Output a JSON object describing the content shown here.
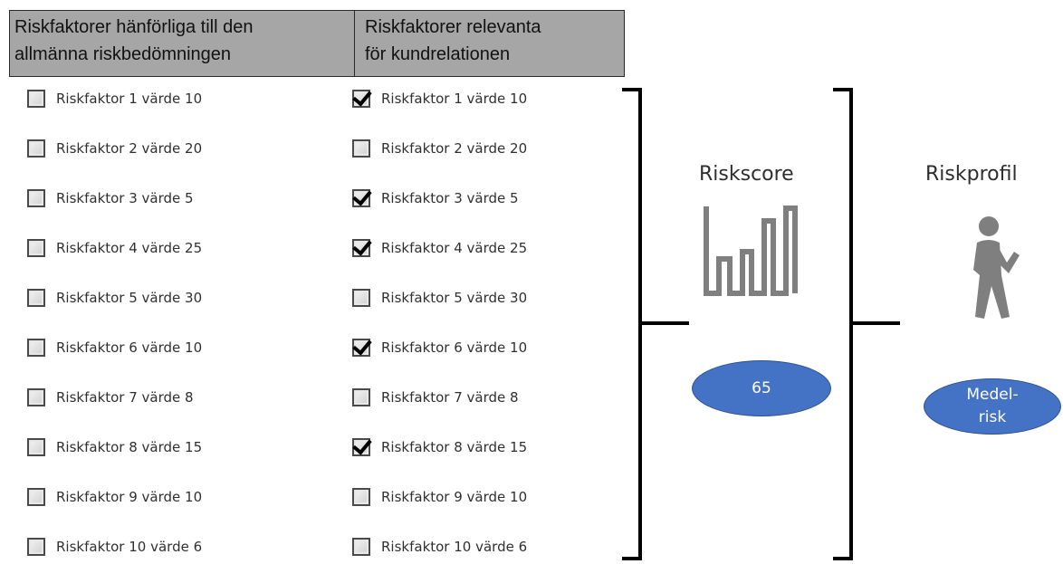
{
  "headers": {
    "general": "Riskfaktorer hänförliga till den\nallmänna riskbedömningen",
    "relation": "Riskfaktorer relevanta\nför kundrelationen"
  },
  "general_factors": [
    {
      "label": "Riskfaktor 1 värde 10",
      "checked": false
    },
    {
      "label": "Riskfaktor 2 värde 20",
      "checked": false
    },
    {
      "label": "Riskfaktor 3 värde 5",
      "checked": false
    },
    {
      "label": "Riskfaktor 4 värde 25",
      "checked": false
    },
    {
      "label": "Riskfaktor 5 värde 30",
      "checked": false
    },
    {
      "label": "Riskfaktor 6 värde 10",
      "checked": false
    },
    {
      "label": "Riskfaktor 7 värde 8",
      "checked": false
    },
    {
      "label": "Riskfaktor 8 värde 15",
      "checked": false
    },
    {
      "label": "Riskfaktor 9 värde 10",
      "checked": false
    },
    {
      "label": "Riskfaktor 10 värde 6",
      "checked": false
    }
  ],
  "relation_factors": [
    {
      "label": "Riskfaktor 1 värde 10",
      "checked": true
    },
    {
      "label": "Riskfaktor 2 värde 20",
      "checked": false
    },
    {
      "label": "Riskfaktor 3 värde 5",
      "checked": true
    },
    {
      "label": "Riskfaktor 4 värde 25",
      "checked": true
    },
    {
      "label": "Riskfaktor 5 värde 30",
      "checked": false
    },
    {
      "label": "Riskfaktor 6 värde 10",
      "checked": true
    },
    {
      "label": "Riskfaktor 7 värde 8",
      "checked": false
    },
    {
      "label": "Riskfaktor 8 värde 15",
      "checked": true
    },
    {
      "label": "Riskfaktor 9 värde 10",
      "checked": false
    },
    {
      "label": "Riskfaktor 10 värde 6",
      "checked": false
    }
  ],
  "riskscore": {
    "title": "Riskscore",
    "icon": "bar-chart-icon",
    "value": "65"
  },
  "riskprofil": {
    "title": "Riskprofil",
    "icon": "person-walking-icon",
    "value": "Medel-\nrisk"
  },
  "colors": {
    "header_bg": "#a6a6a6",
    "oval_fill": "#4472c4",
    "icon_gray": "#7f7f7f"
  }
}
